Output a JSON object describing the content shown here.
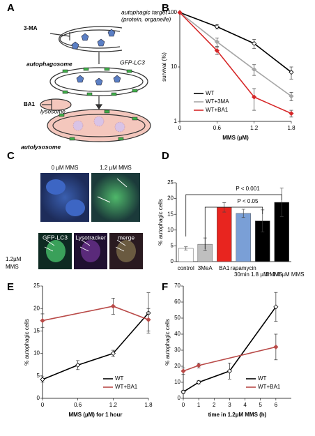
{
  "panel_labels": [
    "A",
    "B",
    "C",
    "D",
    "E",
    "F"
  ],
  "diagram": {
    "inhibitor_1": "3-MA",
    "target_lines": [
      "autophagic target",
      "(protein, organelle)"
    ],
    "autophagosome": "autophagosome",
    "marker": "GFP-LC3",
    "inhibitor_2": "BA1",
    "lysosome": "lysosome",
    "autolysosome": "autolysosome"
  },
  "micrographs": {
    "top_labels": [
      "0 µM MMS",
      "1.2 µM MMS"
    ],
    "bottom_labels": [
      "GFP-LC3",
      "Lysotracker",
      "merge"
    ],
    "row_label": [
      "1.2µM",
      "MMS"
    ]
  },
  "chart_data": [
    {
      "type": "line",
      "log_y": true,
      "legend": "lower-left",
      "x_label": "MMS (µM)",
      "y_label": "survival (%)",
      "xlim": [
        0,
        1.8
      ],
      "xticks": [
        0,
        0.6,
        1.2,
        1.8
      ],
      "ylim": [
        1,
        100
      ],
      "yticks": [
        1,
        10,
        100
      ],
      "series": [
        {
          "name": "WT",
          "color": "#000000",
          "x": [
            0,
            0.6,
            1.2,
            1.8
          ],
          "values": [
            100,
            55,
            27,
            8
          ],
          "errors": [
            0,
            5,
            5,
            2
          ]
        },
        {
          "name": "WT+3MA",
          "color": "#a6a6a6",
          "x": [
            0,
            0.6,
            1.2,
            1.8
          ],
          "values": [
            100,
            29,
            9,
            2.9
          ],
          "errors": [
            0,
            5,
            2,
            0.5
          ]
        },
        {
          "name": "WT+BA1",
          "color": "#d62728",
          "x": [
            0,
            0.6,
            1.2,
            1.8
          ],
          "values": [
            100,
            20,
            2.8,
            1.4
          ],
          "errors": [
            0,
            3,
            1.2,
            0.2
          ]
        }
      ]
    },
    {
      "type": "bar",
      "y_label": "% autophagic cells",
      "ylim": [
        0,
        25
      ],
      "yticks": [
        0,
        5,
        10,
        15,
        20,
        25
      ],
      "categories": [
        "control",
        "3MeA",
        "BA1",
        "rapamycin",
        "30min 1.8 µM MMS",
        "1h 1.8 µM MMS"
      ],
      "values": [
        4.2,
        5.5,
        17.2,
        15.3,
        12.9,
        18.8
      ],
      "errors": [
        0.5,
        2,
        1.5,
        1.3,
        3.5,
        4.5
      ],
      "colors": [
        "#ffffff",
        "#bfbfbf",
        "#e8251f",
        "#7a9fd6",
        "#000000",
        "#000000"
      ],
      "annotations": [
        "P < 0.001",
        "P < 0.05"
      ]
    },
    {
      "type": "line",
      "legend": "lower-right",
      "x_label": "MMS (µM) for 1 hour",
      "y_label": "% autophagic cells",
      "xlim": [
        0,
        1.8
      ],
      "xticks": [
        0,
        0.6,
        1.2,
        1.8
      ],
      "ylim": [
        0,
        25
      ],
      "yticks": [
        0,
        5,
        10,
        15,
        20,
        25
      ],
      "series": [
        {
          "name": "WT",
          "color": "#000000",
          "x": [
            0,
            0.6,
            1.2,
            1.8
          ],
          "values": [
            4.2,
            7.4,
            10,
            19
          ],
          "errors": [
            0.6,
            1,
            0.7,
            4.5
          ]
        },
        {
          "name": "WT+BA1",
          "color": "#b94a48",
          "x": [
            0,
            1.2,
            1.8
          ],
          "values": [
            17.3,
            20.5,
            17.5
          ],
          "errors": [
            1.5,
            1.8,
            2.5
          ]
        }
      ]
    },
    {
      "type": "line",
      "legend": "lower-right",
      "x_label": "time in 1.2µM MMS (h)",
      "y_label": "% autophagic cells",
      "xlim": [
        0,
        7
      ],
      "xticks": [
        0,
        1,
        2,
        3,
        4,
        5,
        6
      ],
      "ylim": [
        0,
        70
      ],
      "yticks": [
        0,
        10,
        20,
        30,
        40,
        50,
        60,
        70
      ],
      "series": [
        {
          "name": "WT",
          "color": "#000000",
          "x": [
            0,
            1,
            3,
            6
          ],
          "values": [
            4,
            10,
            17,
            57
          ],
          "errors": [
            1,
            1,
            5,
            9
          ]
        },
        {
          "name": "WT+BA1",
          "color": "#b94a48",
          "x": [
            0,
            1,
            6
          ],
          "values": [
            17,
            20.5,
            32
          ],
          "errors": [
            2,
            1.5,
            8
          ]
        }
      ]
    }
  ]
}
